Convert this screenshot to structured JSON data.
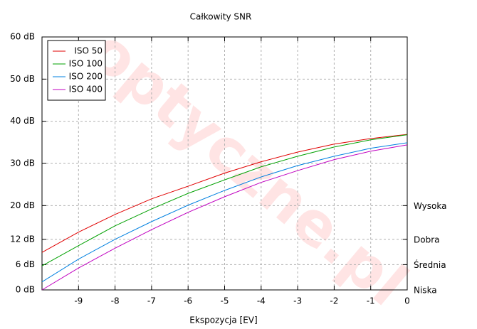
{
  "chart_data": {
    "type": "line",
    "title": "Całkowity SNR",
    "x_label": "Ekspozycja [EV]",
    "watermark": "optyczne.pl",
    "x": [
      -10,
      -9,
      -8,
      -7,
      -6,
      -5,
      -4,
      -3,
      -2,
      -1,
      0
    ],
    "series": [
      {
        "name": "ISO 50",
        "color": "#e00000",
        "values": [
          8.9,
          13.7,
          17.9,
          21.6,
          24.6,
          27.7,
          30.4,
          32.7,
          34.6,
          35.9,
          36.9
        ]
      },
      {
        "name": "ISO 100",
        "color": "#00a000",
        "values": [
          5.7,
          10.5,
          15.2,
          19.2,
          22.9,
          26.1,
          29.2,
          31.7,
          33.9,
          35.6,
          36.8
        ]
      },
      {
        "name": "ISO 200",
        "color": "#0080e0",
        "values": [
          1.9,
          7.3,
          12.0,
          16.2,
          20.1,
          23.6,
          26.8,
          29.5,
          31.7,
          33.6,
          34.9
        ]
      },
      {
        "name": "ISO 400",
        "color": "#c000c0",
        "values": [
          0,
          5.2,
          9.9,
          14.3,
          18.4,
          22.1,
          25.5,
          28.3,
          30.9,
          32.9,
          34.4
        ]
      }
    ],
    "xlim": [
      -10,
      0
    ],
    "xticks": [
      -9,
      -8,
      -7,
      -6,
      -5,
      -4,
      -3,
      -2,
      -1,
      0
    ],
    "ylim": [
      0,
      60
    ],
    "yticks": [
      {
        "value": 0,
        "label": "0 dB"
      },
      {
        "value": 6,
        "label": "6 dB"
      },
      {
        "value": 12,
        "label": "12 dB"
      },
      {
        "value": 20,
        "label": "20 dB"
      },
      {
        "value": 30,
        "label": "30 dB"
      },
      {
        "value": 40,
        "label": "40 dB"
      },
      {
        "value": 50,
        "label": "50 dB"
      },
      {
        "value": 60,
        "label": "60 dB"
      }
    ],
    "y2lim": [
      0,
      60
    ],
    "y2ticks": [
      {
        "value": 0,
        "label": "Niska"
      },
      {
        "value": 6,
        "label": "Średnia"
      },
      {
        "value": 12,
        "label": "Dobra"
      },
      {
        "value": 20,
        "label": "Wysoka"
      }
    ],
    "grid": true,
    "legend": "top-left"
  }
}
